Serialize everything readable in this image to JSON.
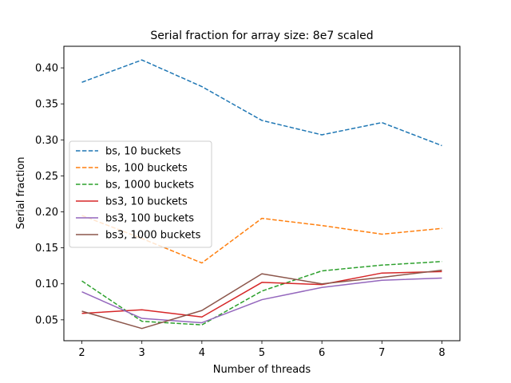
{
  "chart_data": {
    "type": "line",
    "title": "Serial fraction for array size: 8e7 scaled",
    "xlabel": "Number of threads",
    "ylabel": "Serial fraction",
    "x": [
      2,
      3,
      4,
      5,
      6,
      7,
      8
    ],
    "xlim": [
      1.7,
      8.3
    ],
    "ylim": [
      0.021,
      0.43
    ],
    "xticks": [
      2,
      3,
      4,
      5,
      6,
      7,
      8
    ],
    "yticks": [
      0.05,
      0.1,
      0.15,
      0.2,
      0.25,
      0.3,
      0.35,
      0.4
    ],
    "ytick_labels": [
      "0.05",
      "0.10",
      "0.15",
      "0.20",
      "0.25",
      "0.30",
      "0.35",
      "0.40"
    ],
    "grid": false,
    "legend_position": "center-left",
    "series": [
      {
        "name": "bs, 10 buckets",
        "color": "#1f77b4",
        "style": "dashed",
        "values": [
          0.38,
          0.411,
          0.374,
          0.327,
          0.307,
          0.324,
          0.292
        ]
      },
      {
        "name": "bs, 100 buckets",
        "color": "#ff7f0e",
        "style": "dashed",
        "values": [
          0.195,
          0.163,
          0.129,
          0.191,
          0.181,
          0.169,
          0.177
        ]
      },
      {
        "name": "bs, 1000 buckets",
        "color": "#2ca02c",
        "style": "dashed",
        "values": [
          0.104,
          0.048,
          0.043,
          0.09,
          0.118,
          0.126,
          0.131
        ]
      },
      {
        "name": "bs3, 10 buckets",
        "color": "#d62728",
        "style": "solid",
        "values": [
          0.059,
          0.064,
          0.054,
          0.102,
          0.099,
          0.115,
          0.117
        ]
      },
      {
        "name": "bs3, 100 buckets",
        "color": "#9467bd",
        "style": "solid",
        "values": [
          0.089,
          0.052,
          0.046,
          0.078,
          0.095,
          0.105,
          0.108
        ]
      },
      {
        "name": "bs3, 1000 buckets",
        "color": "#8c564b",
        "style": "solid",
        "values": [
          0.062,
          0.038,
          0.063,
          0.114,
          0.1,
          0.109,
          0.119
        ]
      }
    ]
  }
}
